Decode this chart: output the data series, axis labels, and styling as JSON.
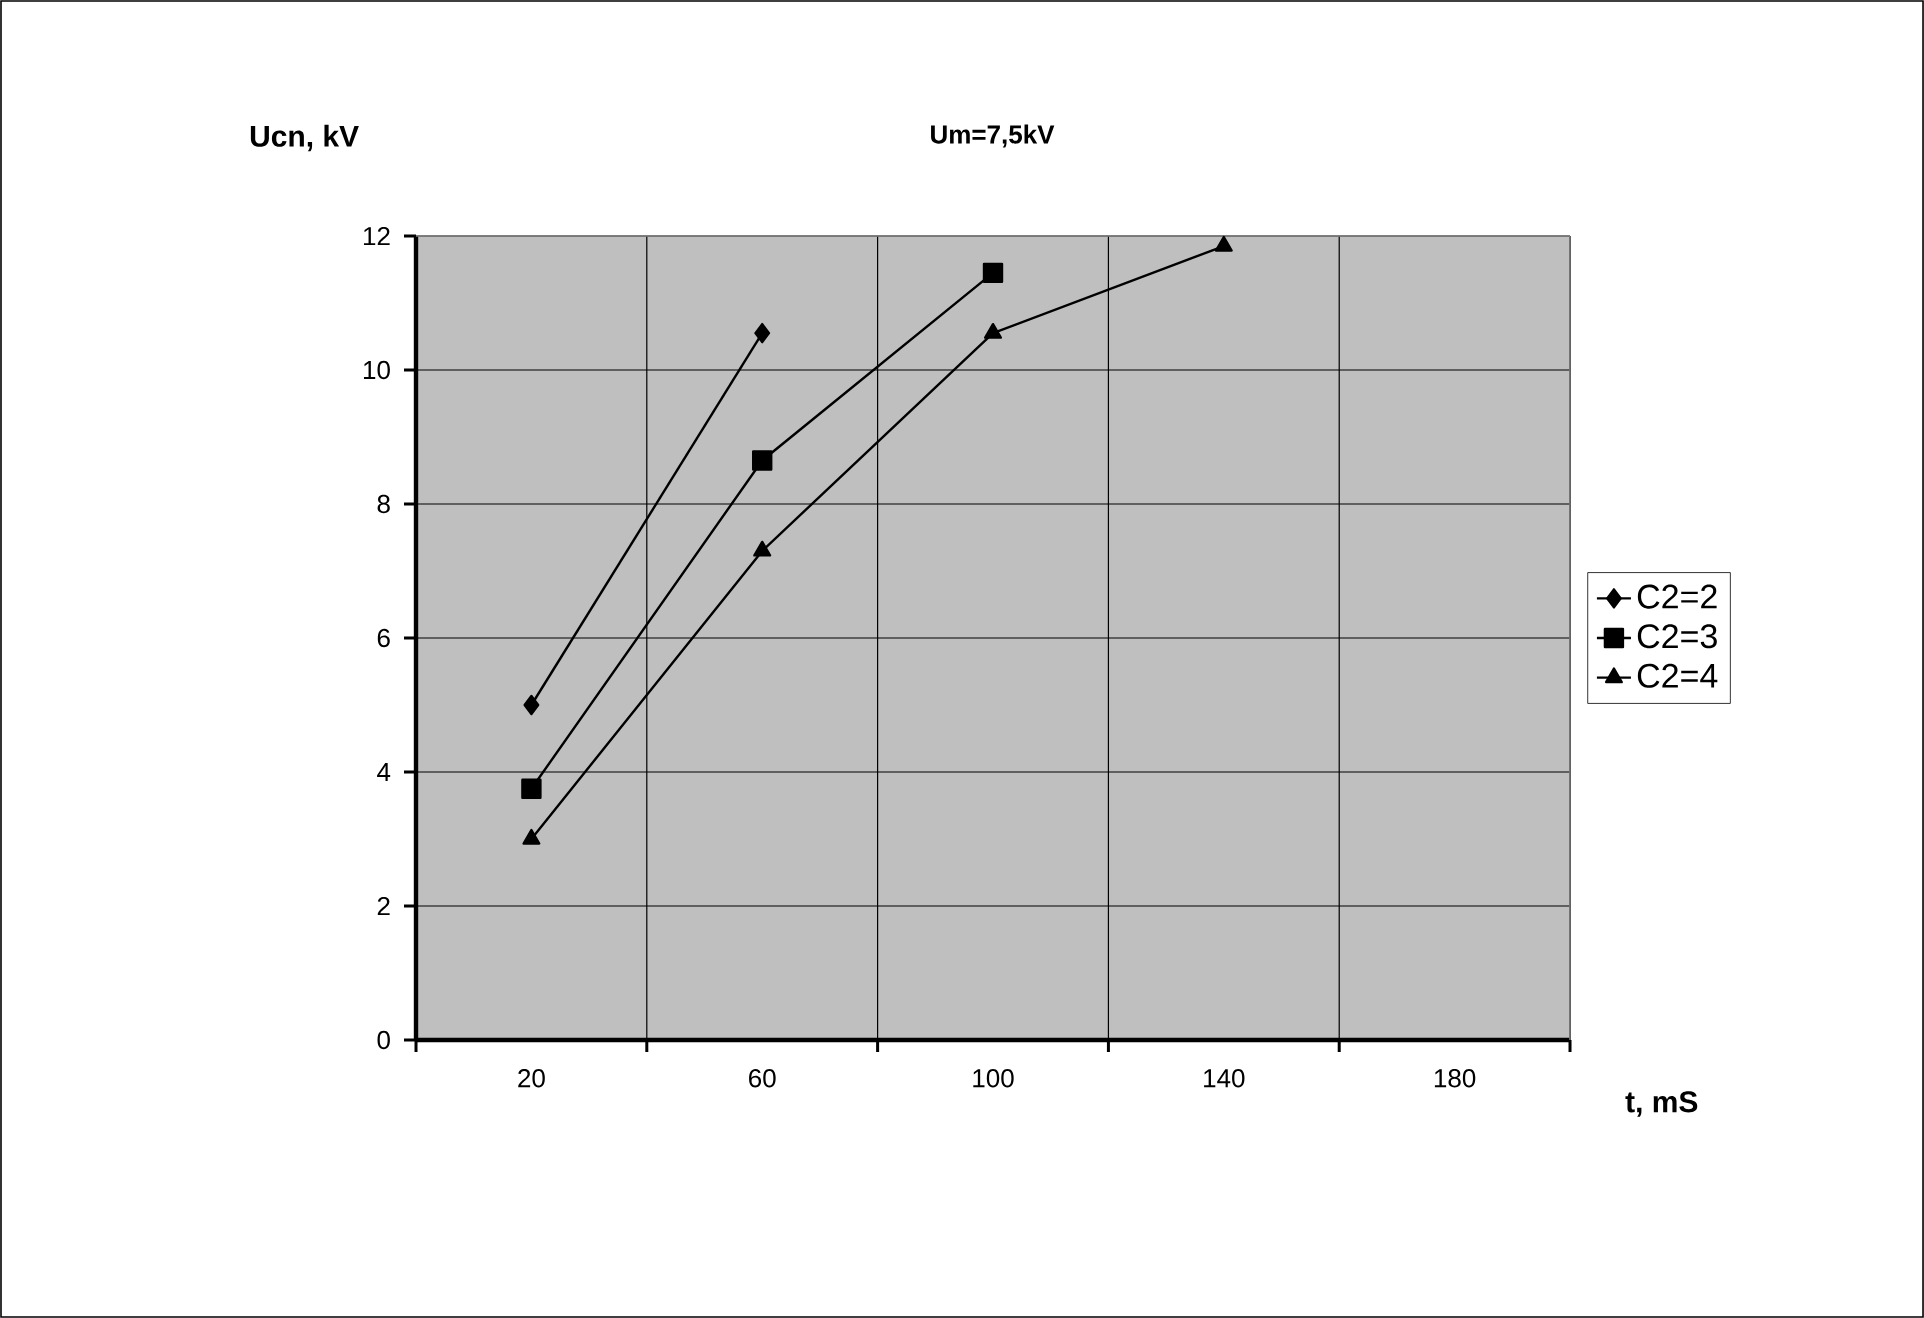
{
  "chart_data": {
    "type": "line",
    "title": "Um=7,5kV",
    "xlabel": "t, mS",
    "ylabel": "Ucn, kV",
    "categories": [
      "20",
      "60",
      "100",
      "140",
      "180"
    ],
    "series": [
      {
        "name": "C2=2",
        "color": "#000000",
        "marker": "diamond",
        "values": [
          5.0,
          10.55,
          null,
          null,
          null
        ]
      },
      {
        "name": "C2=3",
        "color": "#000000",
        "marker": "square",
        "values": [
          3.75,
          8.65,
          11.45,
          null,
          null
        ]
      },
      {
        "name": "C2=4",
        "color": "#000000",
        "marker": "triangle",
        "values": [
          3.0,
          7.3,
          10.55,
          11.85,
          null
        ]
      }
    ],
    "ylim": [
      0,
      12
    ],
    "yticks": [
      0,
      2,
      4,
      6,
      8,
      10,
      12
    ],
    "grid": true,
    "legend": "right",
    "line_style": "solid"
  }
}
